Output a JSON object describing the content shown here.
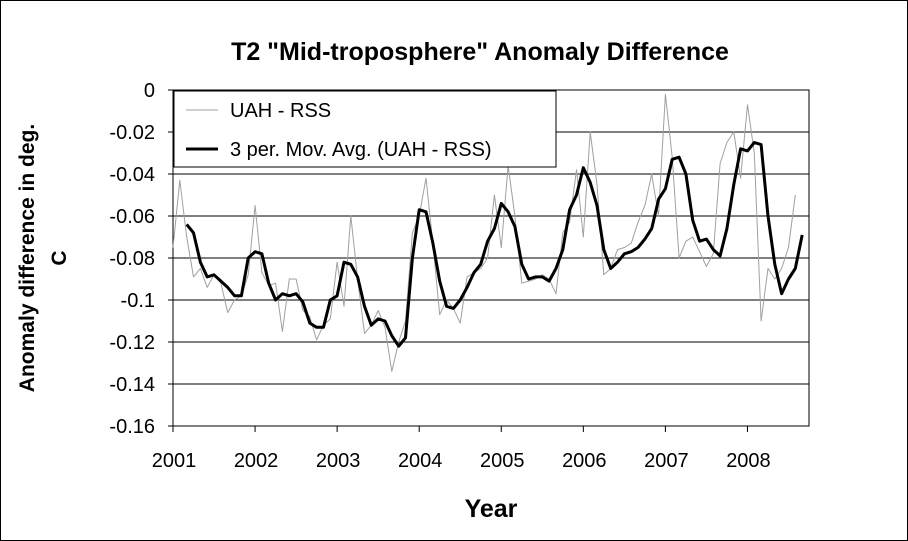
{
  "chart_data": {
    "type": "line",
    "title": "T2 \"Mid-troposphere\" Anomaly Difference",
    "xlabel": "Year",
    "ylabel_lines": [
      "Anomaly difference in deg.",
      "C"
    ],
    "xlim": [
      2001,
      2008.75
    ],
    "ylim": [
      -0.16,
      0
    ],
    "x_ticks": [
      2001,
      2002,
      2003,
      2004,
      2005,
      2006,
      2007,
      2008
    ],
    "x_tick_labels": [
      "2001",
      "2002",
      "2003",
      "2004",
      "2005",
      "2006",
      "2007",
      "2008"
    ],
    "y_ticks": [
      0,
      -0.02,
      -0.04,
      -0.06,
      -0.08,
      -0.1,
      -0.12,
      -0.14,
      -0.16
    ],
    "y_tick_labels": [
      "0",
      "-0.02",
      "-0.04",
      "-0.06",
      "-0.08",
      "-0.1",
      "-0.12",
      "-0.14",
      "-0.16"
    ],
    "grid": true,
    "legend_position": "top-left",
    "series": [
      {
        "name": "UAH - RSS",
        "color": "#a0a0a0",
        "style": "thin",
        "x_start": 2001.0,
        "x_step": 0.0833333,
        "values": [
          -0.075,
          -0.043,
          -0.07,
          -0.089,
          -0.085,
          -0.094,
          -0.088,
          -0.092,
          -0.106,
          -0.1,
          -0.098,
          -0.088,
          -0.055,
          -0.087,
          -0.093,
          -0.092,
          -0.115,
          -0.09,
          -0.09,
          -0.105,
          -0.108,
          -0.119,
          -0.112,
          -0.109,
          -0.082,
          -0.103,
          -0.06,
          -0.09,
          -0.116,
          -0.112,
          -0.105,
          -0.113,
          -0.134,
          -0.12,
          -0.11,
          -0.068,
          -0.06,
          -0.042,
          -0.073,
          -0.107,
          -0.1,
          -0.104,
          -0.111,
          -0.089,
          -0.087,
          -0.085,
          -0.08,
          -0.05,
          -0.075,
          -0.036,
          -0.06,
          -0.092,
          -0.091,
          -0.09,
          -0.088,
          -0.09,
          -0.097,
          -0.068,
          -0.063,
          -0.038,
          -0.07,
          -0.02,
          -0.045,
          -0.088,
          -0.085,
          -0.076,
          -0.075,
          -0.073,
          -0.063,
          -0.055,
          -0.04,
          -0.06,
          -0.002,
          -0.032,
          -0.08,
          -0.072,
          -0.07,
          -0.077,
          -0.084,
          -0.078,
          -0.035,
          -0.025,
          -0.02,
          -0.042,
          -0.007,
          -0.03,
          -0.11,
          -0.085,
          -0.09,
          -0.085,
          -0.075,
          -0.05
        ]
      },
      {
        "name": "3 per. Mov. Avg. (UAH - RSS)",
        "color": "#000000",
        "style": "thick",
        "x_start": 2001.1667,
        "x_step": 0.0833333,
        "values": [
          -0.064,
          -0.068,
          -0.082,
          -0.089,
          -0.088,
          -0.091,
          -0.094,
          -0.098,
          -0.098,
          -0.08,
          -0.077,
          -0.078,
          -0.092,
          -0.1,
          -0.097,
          -0.098,
          -0.097,
          -0.101,
          -0.111,
          -0.113,
          -0.113,
          -0.1,
          -0.098,
          -0.082,
          -0.083,
          -0.089,
          -0.103,
          -0.112,
          -0.109,
          -0.11,
          -0.117,
          -0.122,
          -0.118,
          -0.08,
          -0.057,
          -0.058,
          -0.073,
          -0.091,
          -0.103,
          -0.104,
          -0.1,
          -0.094,
          -0.087,
          -0.083,
          -0.072,
          -0.066,
          -0.054,
          -0.058,
          -0.065,
          -0.083,
          -0.09,
          -0.089,
          -0.089,
          -0.091,
          -0.085,
          -0.076,
          -0.057,
          -0.05,
          -0.037,
          -0.044,
          -0.055,
          -0.076,
          -0.085,
          -0.082,
          -0.078,
          -0.077,
          -0.075,
          -0.071,
          -0.066,
          -0.052,
          -0.047,
          -0.033,
          -0.032,
          -0.04,
          -0.062,
          -0.072,
          -0.071,
          -0.076,
          -0.079,
          -0.066,
          -0.045,
          -0.028,
          -0.029,
          -0.025,
          -0.026,
          -0.06,
          -0.083,
          -0.097,
          -0.09,
          -0.085,
          -0.069
        ]
      }
    ]
  }
}
